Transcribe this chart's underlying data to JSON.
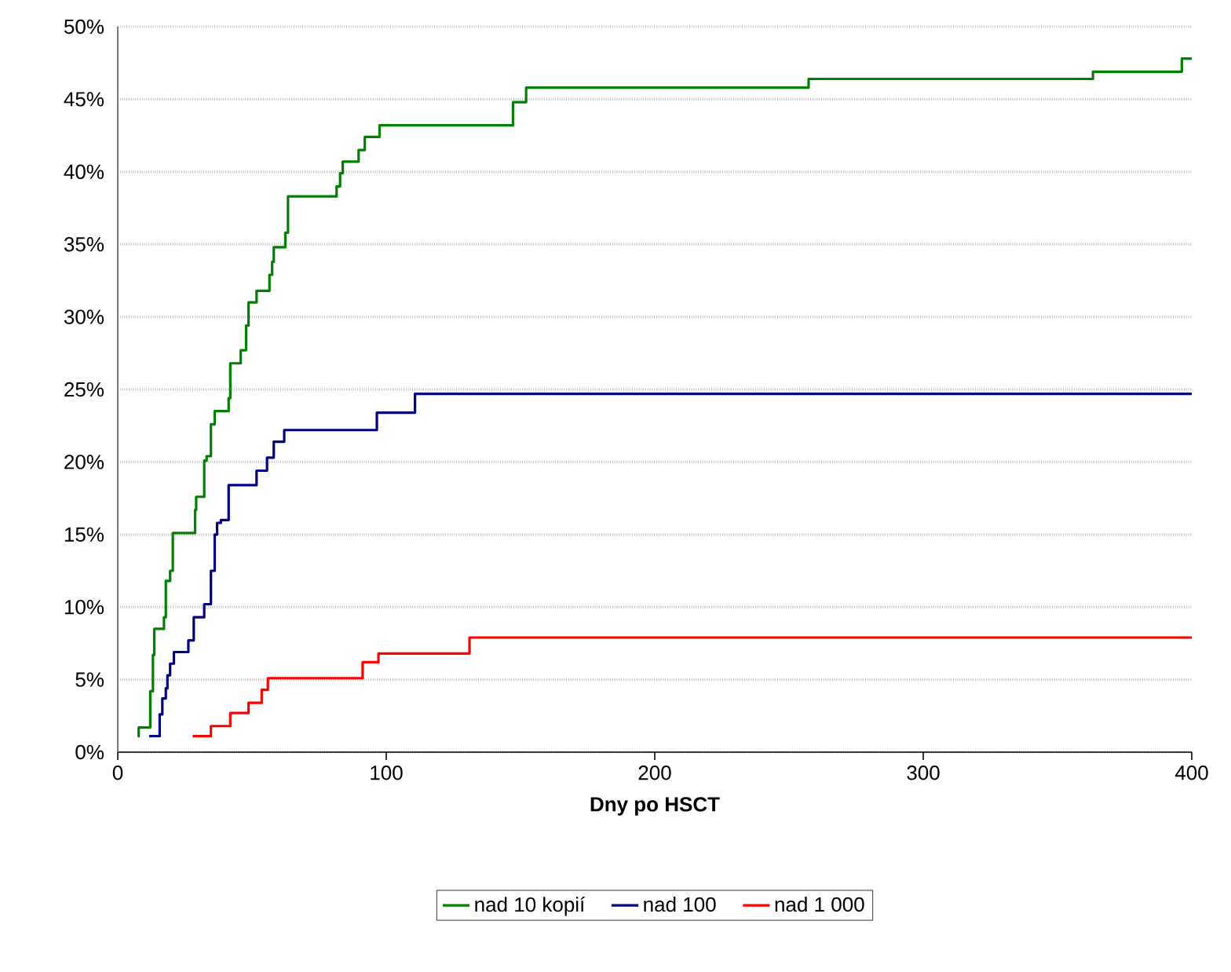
{
  "chart_data": {
    "type": "step",
    "xlabel": "Dny po HSCT",
    "xlim": [
      0,
      400
    ],
    "xticks": [
      0,
      100,
      200,
      300,
      400
    ],
    "ylim": [
      0,
      50
    ],
    "yticks": [
      {
        "value": 0,
        "label": "0%"
      },
      {
        "value": 5,
        "label": "5%"
      },
      {
        "value": 10,
        "label": "10%"
      },
      {
        "value": 15,
        "label": "15%"
      },
      {
        "value": 20,
        "label": "20%"
      },
      {
        "value": 25,
        "label": "25%"
      },
      {
        "value": 30,
        "label": "30%"
      },
      {
        "value": 35,
        "label": "35%"
      },
      {
        "value": 40,
        "label": "40%"
      },
      {
        "value": 45,
        "label": "45%"
      },
      {
        "value": 50,
        "label": "50%"
      }
    ],
    "grid": "y",
    "legend": "bottom",
    "marker": "none",
    "line_style": "solid",
    "series": [
      {
        "name": "nad 10 kopií",
        "color": "#008000",
        "x": [
          7.4,
          7.8,
          12.1,
          13.1,
          13.6,
          17.2,
          17.9,
          19.5,
          20.5,
          28.8,
          29.2,
          32.2,
          33.1,
          34.7,
          36.1,
          41.3,
          41.9,
          45.8,
          47.8,
          48.7,
          51.7,
          56.5,
          57.5,
          58.1,
          62.4,
          63.4,
          81.5,
          82.8,
          83.8,
          89.7,
          92,
          97.5,
          147.2,
          152.1,
          257.3,
          363.2,
          396.3,
          400
        ],
        "values": [
          1.1,
          1.7,
          4.2,
          6.7,
          8.5,
          9.3,
          11.8,
          12.5,
          15.1,
          16.7,
          17.6,
          20.1,
          20.4,
          22.6,
          23.5,
          24.4,
          26.8,
          27.7,
          29.4,
          31.0,
          31.8,
          32.9,
          33.8,
          34.8,
          35.8,
          38.3,
          39.0,
          39.9,
          40.7,
          41.5,
          42.4,
          43.2,
          44.8,
          45.8,
          46.4,
          46.9,
          47.8,
          47.8
        ]
      },
      {
        "name": "nad 100",
        "color": "#000080",
        "x": [
          11.7,
          15.6,
          16.6,
          17.9,
          18.5,
          19.5,
          20.9,
          26.3,
          28.3,
          32.2,
          34.7,
          36.1,
          37.0,
          38.4,
          41.3,
          51.7,
          55.6,
          58.1,
          62.0,
          96.5,
          110.7,
          400
        ],
        "values": [
          1.1,
          2.6,
          3.7,
          4.4,
          5.3,
          6.1,
          6.9,
          7.7,
          9.3,
          10.2,
          12.5,
          15.0,
          15.8,
          16.0,
          18.4,
          19.4,
          20.3,
          21.4,
          22.2,
          23.4,
          24.7,
          24.7
        ]
      },
      {
        "name": "nad 1 000",
        "color": "#ff0000",
        "x": [
          27.9,
          34.7,
          41.9,
          48.7,
          53.6,
          55.9,
          91.2,
          97.1,
          131,
          400
        ],
        "values": [
          1.1,
          1.8,
          2.7,
          3.4,
          4.3,
          5.1,
          6.2,
          6.8,
          7.9,
          7.9
        ]
      }
    ]
  }
}
